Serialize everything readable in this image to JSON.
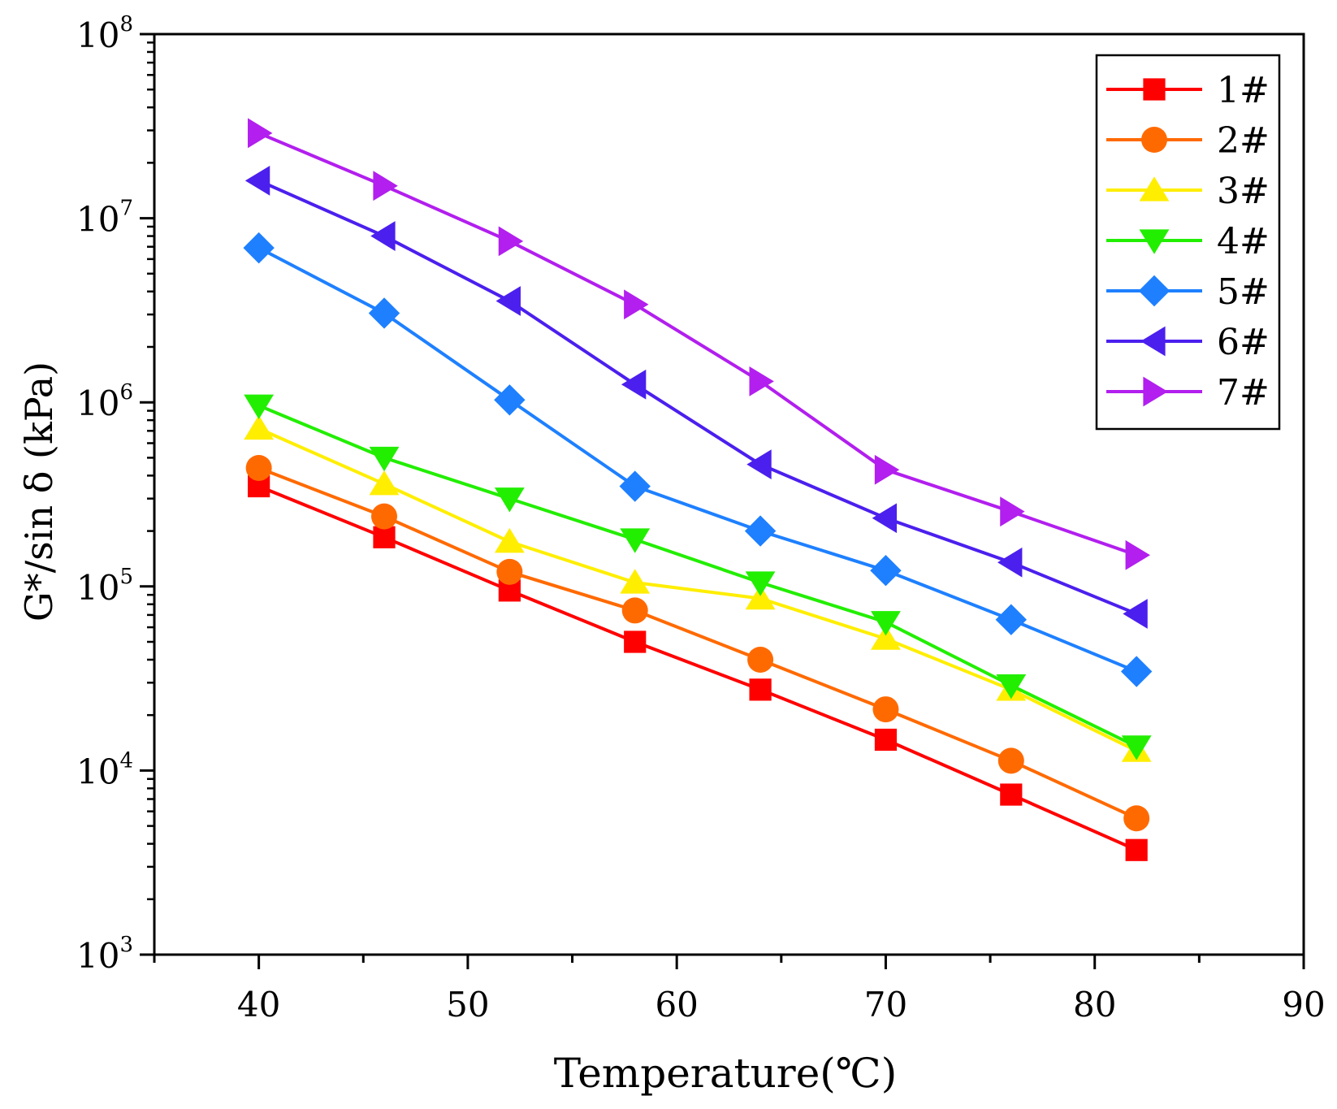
{
  "chart_data": {
    "type": "line",
    "title": "",
    "xlabel": "Temperature(℃)",
    "ylabel": "G*/sin δ (kPa)",
    "xlim": [
      35,
      90
    ],
    "ylim": [
      1000,
      100000000
    ],
    "yscale": "log",
    "legend_position": "top-right",
    "grid": false,
    "x_ticks": [
      40,
      50,
      60,
      70,
      80,
      90
    ],
    "y_ticks": [
      {
        "value": 1000,
        "base": "10",
        "exp": "3"
      },
      {
        "value": 10000,
        "base": "10",
        "exp": "4"
      },
      {
        "value": 100000,
        "base": "10",
        "exp": "5"
      },
      {
        "value": 1000000,
        "base": "10",
        "exp": "6"
      },
      {
        "value": 10000000,
        "base": "10",
        "exp": "7"
      },
      {
        "value": 100000000,
        "base": "10",
        "exp": "8"
      }
    ],
    "x": [
      40,
      46,
      52,
      58,
      64,
      70,
      76,
      82
    ],
    "series": [
      {
        "name": "1#",
        "color": "#ff0000",
        "marker": "square",
        "values": [
          350000,
          185000,
          95000,
          50000,
          27500,
          14700,
          7400,
          3700
        ]
      },
      {
        "name": "2#",
        "color": "#ff6a00",
        "marker": "circle",
        "values": [
          440000,
          240000,
          120000,
          74000,
          40000,
          21500,
          11300,
          5500
        ]
      },
      {
        "name": "3#",
        "color": "#ffee00",
        "marker": "triangle-up",
        "values": [
          720000,
          360000,
          175000,
          105000,
          86000,
          52000,
          27500,
          12800
        ]
      },
      {
        "name": "4#",
        "color": "#22ee00",
        "marker": "triangle-down",
        "values": [
          960000,
          500000,
          300000,
          180000,
          105000,
          64000,
          29000,
          13500
        ]
      },
      {
        "name": "5#",
        "color": "#1e80ff",
        "marker": "diamond",
        "values": [
          6900000,
          3050000,
          1030000,
          350000,
          200000,
          122000,
          66000,
          34500
        ]
      },
      {
        "name": "6#",
        "color": "#4b1fee",
        "marker": "triangle-left",
        "values": [
          16000000,
          8000000,
          3550000,
          1250000,
          460000,
          235000,
          135000,
          71000
        ]
      },
      {
        "name": "7#",
        "color": "#b21fee",
        "marker": "triangle-right",
        "values": [
          29000000,
          15000000,
          7500000,
          3400000,
          1300000,
          430000,
          255000,
          148000
        ]
      }
    ]
  }
}
